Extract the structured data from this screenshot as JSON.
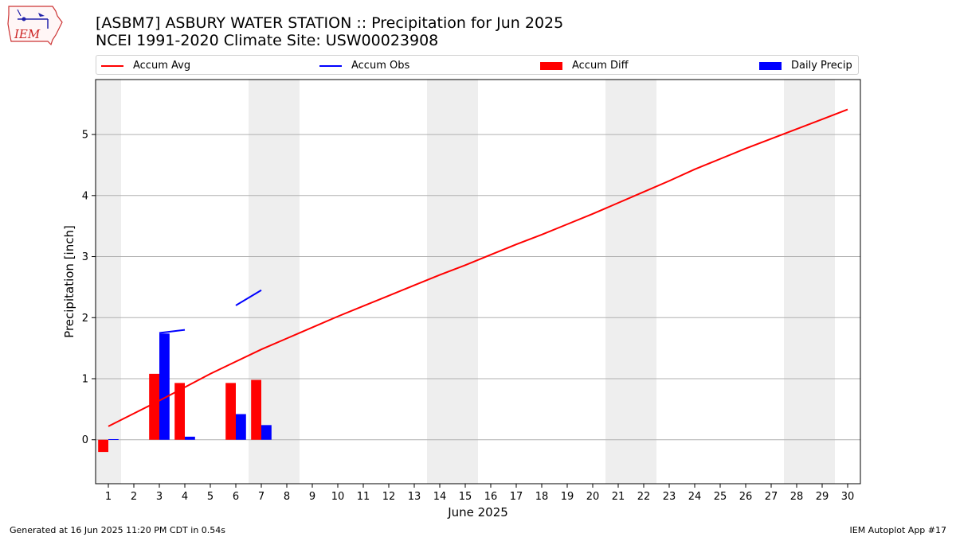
{
  "logo": {
    "text": "IEM"
  },
  "header": {
    "title_line1": "[ASBM7] ASBURY WATER STATION :: Precipitation for Jun 2025",
    "title_line2": "NCEI 1991-2020 Climate Site: USW00023908"
  },
  "legend": {
    "items": [
      {
        "label": "Accum Avg",
        "kind": "line",
        "color": "#ff0000"
      },
      {
        "label": "Accum Obs",
        "kind": "line",
        "color": "#0000ff"
      },
      {
        "label": "Accum Diff",
        "kind": "bar",
        "color": "#ff0000"
      },
      {
        "label": "Daily Precip",
        "kind": "bar",
        "color": "#0000ff"
      }
    ]
  },
  "chart_data": {
    "type": "bar",
    "xlabel": "June 2025",
    "ylabel": "Precipitation [inch]",
    "x": [
      1,
      2,
      3,
      4,
      5,
      6,
      7,
      8,
      9,
      10,
      11,
      12,
      13,
      14,
      15,
      16,
      17,
      18,
      19,
      20,
      21,
      22,
      23,
      24,
      25,
      26,
      27,
      28,
      29,
      30
    ],
    "xlim": [
      0.5,
      30.5
    ],
    "ylim": [
      -0.72,
      5.9
    ],
    "yticks": [
      0,
      1,
      2,
      3,
      4,
      5
    ],
    "grid": "y",
    "weekend_bands": [
      [
        0.5,
        1.5
      ],
      [
        6.5,
        8.5
      ],
      [
        13.5,
        15.5
      ],
      [
        20.5,
        22.5
      ],
      [
        27.5,
        29.5
      ]
    ],
    "series": [
      {
        "name": "Accum Avg",
        "kind": "line",
        "color": "#ff0000",
        "x": [
          1,
          2,
          3,
          4,
          5,
          6,
          7,
          8,
          9,
          10,
          11,
          12,
          13,
          14,
          15,
          16,
          17,
          18,
          19,
          20,
          21,
          22,
          23,
          24,
          25,
          26,
          27,
          28,
          29,
          30
        ],
        "values": [
          0.22,
          0.43,
          0.64,
          0.86,
          1.08,
          1.28,
          1.48,
          1.66,
          1.84,
          2.02,
          2.19,
          2.36,
          2.53,
          2.7,
          2.86,
          3.03,
          3.2,
          3.36,
          3.53,
          3.7,
          3.88,
          4.06,
          4.24,
          4.43,
          4.6,
          4.77,
          4.93,
          5.09,
          5.25,
          5.41
        ]
      },
      {
        "name": "Accum Obs",
        "kind": "segments",
        "color": "#0000ff",
        "segments": [
          {
            "x": [
              3,
              4
            ],
            "values": [
              1.75,
              1.8
            ]
          },
          {
            "x": [
              6,
              7
            ],
            "values": [
              2.2,
              2.45
            ]
          }
        ]
      },
      {
        "name": "Accum Diff",
        "kind": "bar",
        "color": "#ff0000",
        "x": [
          1,
          3,
          4,
          6,
          7
        ],
        "values": [
          -0.2,
          1.08,
          0.93,
          0.93,
          0.98
        ]
      },
      {
        "name": "Daily Precip",
        "kind": "bar",
        "color": "#0000ff",
        "x": [
          1,
          3,
          4,
          6,
          7
        ],
        "values": [
          0.01,
          1.74,
          0.05,
          0.42,
          0.24
        ]
      }
    ]
  },
  "footer": {
    "left": "Generated at 16 Jun 2025 11:20 PM CDT in 0.54s",
    "right": "IEM Autoplot App #17"
  }
}
